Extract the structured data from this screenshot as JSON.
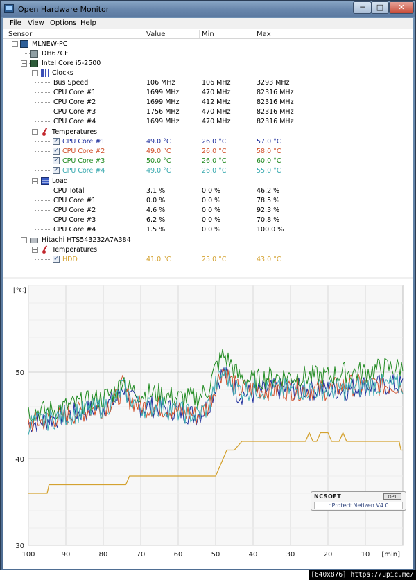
{
  "window": {
    "title": "Open Hardware Monitor",
    "min_glyph": "─",
    "max_glyph": "□",
    "close_glyph": "✕"
  },
  "menu": [
    "File",
    "View",
    "Options",
    "Help"
  ],
  "columns": {
    "sensor": "Sensor",
    "value": "Value",
    "min": "Min",
    "max": "Max"
  },
  "tree": {
    "computer": "MLNEW-PC",
    "mainboard": "DH67CF",
    "cpu": {
      "name": "Intel Core i5-2500",
      "clocks": {
        "label": "Clocks",
        "rows": [
          {
            "name": "Bus Speed",
            "value": "106 MHz",
            "min": "106 MHz",
            "max": "3293 MHz"
          },
          {
            "name": "CPU Core #1",
            "value": "1699 MHz",
            "min": "470 MHz",
            "max": "82316 MHz"
          },
          {
            "name": "CPU Core #2",
            "value": "1699 MHz",
            "min": "412 MHz",
            "max": "82316 MHz"
          },
          {
            "name": "CPU Core #3",
            "value": "1756 MHz",
            "min": "470 MHz",
            "max": "82316 MHz"
          },
          {
            "name": "CPU Core #4",
            "value": "1699 MHz",
            "min": "470 MHz",
            "max": "82316 MHz"
          }
        ]
      },
      "temperatures": {
        "label": "Temperatures",
        "rows": [
          {
            "name": "CPU Core #1",
            "value": "49.0 °C",
            "min": "26.0 °C",
            "max": "57.0 °C",
            "color": "#1f2f9c"
          },
          {
            "name": "CPU Core #2",
            "value": "49.0 °C",
            "min": "26.0 °C",
            "max": "58.0 °C",
            "color": "#d0502b"
          },
          {
            "name": "CPU Core #3",
            "value": "50.0 °C",
            "min": "26.0 °C",
            "max": "60.0 °C",
            "color": "#1f8a1f"
          },
          {
            "name": "CPU Core #4",
            "value": "49.0 °C",
            "min": "26.0 °C",
            "max": "55.0 °C",
            "color": "#3aaab0"
          }
        ]
      },
      "load": {
        "label": "Load",
        "rows": [
          {
            "name": "CPU Total",
            "value": "3.1 %",
            "min": "0.0 %",
            "max": "46.2 %"
          },
          {
            "name": "CPU Core #1",
            "value": "0.0 %",
            "min": "0.0 %",
            "max": "78.5 %"
          },
          {
            "name": "CPU Core #2",
            "value": "4.6 %",
            "min": "0.0 %",
            "max": "92.3 %"
          },
          {
            "name": "CPU Core #3",
            "value": "6.2 %",
            "min": "0.0 %",
            "max": "70.8 %"
          },
          {
            "name": "CPU Core #4",
            "value": "1.5 %",
            "min": "0.0 %",
            "max": "100.0 %"
          }
        ]
      }
    },
    "hdd": {
      "name": "Hitachi HTS543232A7A384",
      "temperatures": {
        "label": "Temperatures",
        "rows": [
          {
            "name": "HDD",
            "value": "41.0 °C",
            "min": "25.0 °C",
            "max": "43.0 °C",
            "color": "#d4a230"
          }
        ]
      }
    }
  },
  "chart_data": {
    "type": "line",
    "ylabel": "[°C]",
    "xlabel": "[min]",
    "xlim": [
      100,
      0
    ],
    "ylim": [
      30,
      60
    ],
    "x_ticks": [
      100,
      90,
      80,
      70,
      60,
      50,
      40,
      30,
      20,
      10
    ],
    "y_ticks": [
      30,
      40,
      50
    ],
    "grid": true,
    "series": [
      {
        "name": "CPU Core #1",
        "color": "#1f2f9c",
        "points": [
          [
            100,
            44
          ],
          [
            95,
            44.5
          ],
          [
            90,
            45
          ],
          [
            85,
            45.5
          ],
          [
            80,
            46
          ],
          [
            76,
            47
          ],
          [
            75,
            48.5
          ],
          [
            73,
            47
          ],
          [
            70,
            46
          ],
          [
            65,
            46
          ],
          [
            60,
            45.5
          ],
          [
            55,
            45
          ],
          [
            52,
            46
          ],
          [
            50,
            48.5
          ],
          [
            48,
            50
          ],
          [
            46,
            49
          ],
          [
            44,
            47.5
          ],
          [
            40,
            47.5
          ],
          [
            35,
            48
          ],
          [
            30,
            48
          ],
          [
            25,
            48
          ],
          [
            20,
            48
          ],
          [
            15,
            48
          ],
          [
            10,
            48.5
          ],
          [
            5,
            48.5
          ],
          [
            0,
            48.5
          ]
        ]
      },
      {
        "name": "CPU Core #2",
        "color": "#d0502b",
        "points": [
          [
            100,
            44
          ],
          [
            95,
            44.5
          ],
          [
            90,
            45
          ],
          [
            85,
            45.5
          ],
          [
            80,
            46
          ],
          [
            76,
            47
          ],
          [
            75,
            48.5
          ],
          [
            73,
            47
          ],
          [
            70,
            46
          ],
          [
            65,
            46
          ],
          [
            60,
            45.5
          ],
          [
            55,
            45
          ],
          [
            52,
            46
          ],
          [
            50,
            48.5
          ],
          [
            48,
            50.5
          ],
          [
            46,
            49
          ],
          [
            44,
            48
          ],
          [
            40,
            48
          ],
          [
            35,
            48
          ],
          [
            30,
            48
          ],
          [
            25,
            48
          ],
          [
            20,
            48
          ],
          [
            15,
            48.5
          ],
          [
            10,
            48.5
          ],
          [
            5,
            48.5
          ],
          [
            0,
            48.5
          ]
        ]
      },
      {
        "name": "CPU Core #3",
        "color": "#1f8a1f",
        "points": [
          [
            100,
            45.5
          ],
          [
            95,
            45.5
          ],
          [
            90,
            46
          ],
          [
            85,
            46.5
          ],
          [
            80,
            47
          ],
          [
            76,
            48
          ],
          [
            75,
            49.5
          ],
          [
            73,
            48
          ],
          [
            70,
            47.5
          ],
          [
            65,
            47.5
          ],
          [
            60,
            47
          ],
          [
            55,
            47
          ],
          [
            52,
            48
          ],
          [
            50,
            50.5
          ],
          [
            48,
            52
          ],
          [
            46,
            51
          ],
          [
            44,
            49.5
          ],
          [
            40,
            49
          ],
          [
            35,
            49.5
          ],
          [
            30,
            49.5
          ],
          [
            25,
            49.5
          ],
          [
            20,
            49.5
          ],
          [
            15,
            50
          ],
          [
            10,
            50
          ],
          [
            5,
            50.5
          ],
          [
            0,
            50.5
          ]
        ]
      },
      {
        "name": "CPU Core #4",
        "color": "#3aaab0",
        "points": [
          [
            100,
            44
          ],
          [
            95,
            44.5
          ],
          [
            90,
            45
          ],
          [
            85,
            45.5
          ],
          [
            80,
            46
          ],
          [
            76,
            47
          ],
          [
            75,
            48.5
          ],
          [
            73,
            47
          ],
          [
            70,
            46
          ],
          [
            65,
            46
          ],
          [
            60,
            45.5
          ],
          [
            55,
            45
          ],
          [
            52,
            46
          ],
          [
            50,
            48.5
          ],
          [
            48,
            50
          ],
          [
            46,
            49
          ],
          [
            44,
            48
          ],
          [
            40,
            48
          ],
          [
            35,
            48
          ],
          [
            30,
            48
          ],
          [
            25,
            48
          ],
          [
            20,
            48
          ],
          [
            15,
            48
          ],
          [
            10,
            48.5
          ],
          [
            5,
            48.5
          ],
          [
            0,
            48.5
          ]
        ]
      },
      {
        "name": "HDD",
        "color": "#d4a230",
        "step": true,
        "points": [
          [
            100,
            36
          ],
          [
            95,
            36
          ],
          [
            94.5,
            37
          ],
          [
            89,
            37
          ],
          [
            74,
            37
          ],
          [
            73,
            38
          ],
          [
            50,
            38
          ],
          [
            49,
            39
          ],
          [
            48,
            40
          ],
          [
            47,
            41
          ],
          [
            45,
            41
          ],
          [
            43,
            42
          ],
          [
            26,
            42
          ],
          [
            25,
            43
          ],
          [
            24,
            42
          ],
          [
            23,
            42
          ],
          [
            22,
            43
          ],
          [
            20,
            43
          ],
          [
            19,
            42
          ],
          [
            17,
            42
          ],
          [
            16,
            43
          ],
          [
            15,
            42
          ],
          [
            1,
            42
          ],
          [
            0.5,
            41
          ],
          [
            0,
            41
          ]
        ]
      }
    ]
  },
  "popup": {
    "brand": "NCSOFT",
    "opt": "OPT",
    "name": "nProtect Netizen V4.0"
  },
  "watermark": "[640x876] https://upic.me/"
}
